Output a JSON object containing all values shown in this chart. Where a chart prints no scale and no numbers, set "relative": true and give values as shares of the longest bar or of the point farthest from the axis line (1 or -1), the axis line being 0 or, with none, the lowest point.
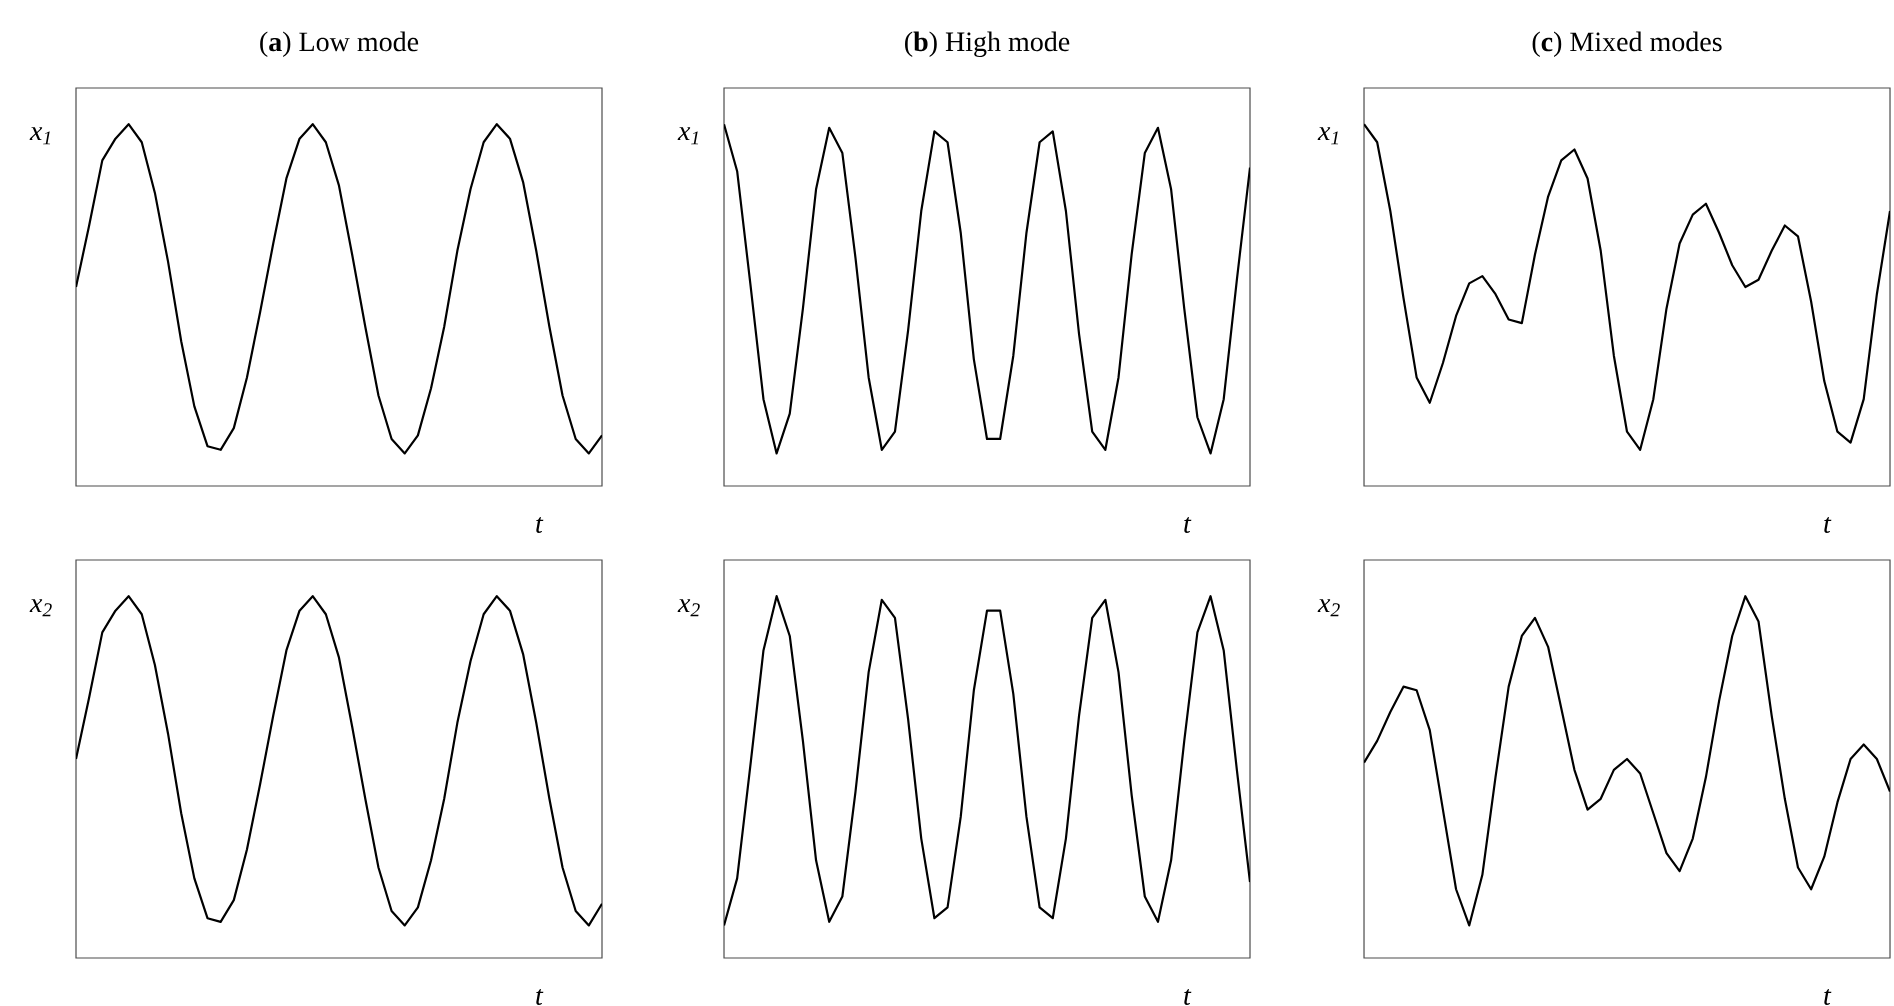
{
  "chart_data": [
    {
      "type": "line",
      "title": "(**a**) Low mode",
      "xlabel": "t",
      "ylabel": "x$_{1}$",
      "relative": true,
      "color": "#000000",
      "categories": [
        null,
        null,
        null,
        null,
        null,
        null,
        null,
        null,
        null,
        null,
        null,
        null,
        null,
        null,
        null,
        null,
        null,
        null,
        null,
        null,
        null,
        null,
        null,
        null,
        null,
        null,
        null,
        null,
        null,
        null,
        null,
        null,
        null,
        null,
        null,
        null,
        null,
        null,
        null,
        null,
        null
      ],
      "values": [
        0.55,
        0.72,
        0.9,
        0.96,
        1,
        0.95,
        0.81,
        0.62,
        0.4,
        0.22,
        0.11,
        0.1,
        0.16,
        0.3,
        0.48,
        0.67,
        0.85,
        0.96,
        1,
        0.95,
        0.83,
        0.64,
        0.44,
        0.25,
        0.13,
        0.09,
        0.14,
        0.27,
        0.44,
        0.65,
        0.82,
        0.95,
        1,
        0.96,
        0.84,
        0.65,
        0.44,
        0.25,
        0.13,
        0.09,
        0.14
      ]
    },
    {
      "type": "line",
      "title": "(**b**) High mode",
      "xlabel": "t",
      "ylabel": "x$_{1}$",
      "relative": true,
      "color": "#000000",
      "categories": [
        null,
        null,
        null,
        null,
        null,
        null,
        null,
        null,
        null,
        null,
        null,
        null,
        null,
        null,
        null,
        null,
        null,
        null,
        null,
        null,
        null,
        null,
        null,
        null,
        null,
        null,
        null,
        null,
        null,
        null,
        null,
        null,
        null,
        null,
        null,
        null,
        null,
        null,
        null,
        null,
        null
      ],
      "values": [
        1,
        0.87,
        0.56,
        0.24,
        0.09,
        0.2,
        0.49,
        0.82,
        0.99,
        0.92,
        0.63,
        0.3,
        0.1,
        0.15,
        0.43,
        0.76,
        0.98,
        0.95,
        0.7,
        0.35,
        0.13,
        0.13,
        0.36,
        0.7,
        0.95,
        0.98,
        0.76,
        0.42,
        0.15,
        0.1,
        0.3,
        0.64,
        0.92,
        0.99,
        0.82,
        0.49,
        0.19,
        0.09,
        0.24,
        0.57,
        0.88
      ]
    },
    {
      "type": "line",
      "title": "(**c**) Mixed modes",
      "xlabel": "t",
      "ylabel": "x$_{1}$",
      "relative": true,
      "color": "#000000",
      "categories": [
        null,
        null,
        null,
        null,
        null,
        null,
        null,
        null,
        null,
        null,
        null,
        null,
        null,
        null,
        null,
        null,
        null,
        null,
        null,
        null,
        null,
        null,
        null,
        null,
        null,
        null,
        null,
        null,
        null,
        null,
        null,
        null,
        null,
        null,
        null,
        null,
        null,
        null,
        null,
        null,
        null
      ],
      "values": [
        1,
        0.95,
        0.76,
        0.52,
        0.3,
        0.23,
        0.34,
        0.47,
        0.56,
        0.58,
        0.53,
        0.46,
        0.45,
        0.64,
        0.8,
        0.9,
        0.93,
        0.85,
        0.65,
        0.36,
        0.15,
        0.1,
        0.24,
        0.49,
        0.67,
        0.75,
        0.78,
        0.7,
        0.61,
        0.55,
        0.57,
        0.65,
        0.72,
        0.69,
        0.51,
        0.29,
        0.15,
        0.12,
        0.24,
        0.53,
        0.76
      ]
    },
    {
      "type": "line",
      "xlabel": "t",
      "ylabel": "x$_{2}$",
      "relative": true,
      "color": "#000000",
      "categories": [
        null,
        null,
        null,
        null,
        null,
        null,
        null,
        null,
        null,
        null,
        null,
        null,
        null,
        null,
        null,
        null,
        null,
        null,
        null,
        null,
        null,
        null,
        null,
        null,
        null,
        null,
        null,
        null,
        null,
        null,
        null,
        null,
        null,
        null,
        null,
        null,
        null,
        null,
        null,
        null,
        null
      ],
      "values": [
        0.55,
        0.72,
        0.9,
        0.96,
        1,
        0.95,
        0.81,
        0.62,
        0.4,
        0.22,
        0.11,
        0.1,
        0.16,
        0.3,
        0.48,
        0.67,
        0.85,
        0.96,
        1,
        0.95,
        0.83,
        0.64,
        0.44,
        0.25,
        0.13,
        0.09,
        0.14,
        0.27,
        0.44,
        0.65,
        0.82,
        0.95,
        1,
        0.96,
        0.84,
        0.65,
        0.44,
        0.25,
        0.13,
        0.09,
        0.15
      ]
    },
    {
      "type": "line",
      "xlabel": "t",
      "ylabel": "x$_{2}$",
      "relative": true,
      "color": "#000000",
      "categories": [
        null,
        null,
        null,
        null,
        null,
        null,
        null,
        null,
        null,
        null,
        null,
        null,
        null,
        null,
        null,
        null,
        null,
        null,
        null,
        null,
        null,
        null,
        null,
        null,
        null,
        null,
        null,
        null,
        null,
        null,
        null,
        null,
        null,
        null,
        null,
        null,
        null,
        null,
        null,
        null,
        null
      ],
      "values": [
        0.09,
        0.22,
        0.53,
        0.85,
        1,
        0.89,
        0.6,
        0.27,
        0.1,
        0.17,
        0.46,
        0.79,
        0.99,
        0.94,
        0.66,
        0.33,
        0.11,
        0.14,
        0.39,
        0.74,
        0.96,
        0.96,
        0.73,
        0.39,
        0.14,
        0.11,
        0.33,
        0.67,
        0.94,
        0.99,
        0.79,
        0.45,
        0.17,
        0.1,
        0.27,
        0.6,
        0.9,
        1,
        0.85,
        0.52,
        0.21
      ]
    },
    {
      "type": "line",
      "xlabel": "t",
      "ylabel": "x$_{2}$",
      "relative": true,
      "color": "#000000",
      "categories": [
        null,
        null,
        null,
        null,
        null,
        null,
        null,
        null,
        null,
        null,
        null,
        null,
        null,
        null,
        null,
        null,
        null,
        null,
        null,
        null,
        null,
        null,
        null,
        null,
        null,
        null,
        null,
        null,
        null,
        null,
        null,
        null,
        null,
        null,
        null,
        null,
        null,
        null,
        null,
        null,
        null
      ],
      "values": [
        0.54,
        0.6,
        0.68,
        0.75,
        0.74,
        0.63,
        0.41,
        0.19,
        0.09,
        0.23,
        0.5,
        0.75,
        0.89,
        0.94,
        0.86,
        0.69,
        0.52,
        0.41,
        0.44,
        0.52,
        0.55,
        0.51,
        0.4,
        0.29,
        0.24,
        0.33,
        0.5,
        0.71,
        0.89,
        1,
        0.93,
        0.67,
        0.44,
        0.25,
        0.19,
        0.28,
        0.43,
        0.55,
        0.59,
        0.55,
        0.46
      ]
    }
  ]
}
